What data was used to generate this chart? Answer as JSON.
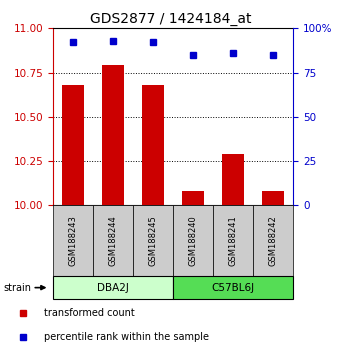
{
  "title": "GDS2877 / 1424184_at",
  "samples": [
    "GSM188243",
    "GSM188244",
    "GSM188245",
    "GSM188240",
    "GSM188241",
    "GSM188242"
  ],
  "bar_values": [
    10.68,
    10.79,
    10.68,
    10.08,
    10.29,
    10.08
  ],
  "percentile_values": [
    92,
    93,
    92,
    85,
    86,
    85
  ],
  "ylim_left": [
    10,
    11
  ],
  "ylim_right": [
    0,
    100
  ],
  "yticks_left": [
    10,
    10.25,
    10.5,
    10.75,
    11
  ],
  "yticks_right": [
    0,
    25,
    50,
    75,
    100
  ],
  "bar_color": "#cc0000",
  "dot_color": "#0000cc",
  "groups": [
    {
      "label": "DBA2J",
      "indices": [
        0,
        1,
        2
      ],
      "color": "#ccffcc"
    },
    {
      "label": "C57BL6J",
      "indices": [
        3,
        4,
        5
      ],
      "color": "#55dd55"
    }
  ],
  "strain_label": "strain",
  "legend_bar_label": "transformed count",
  "legend_dot_label": "percentile rank within the sample",
  "sample_bg_color": "#cccccc",
  "title_fontsize": 10,
  "tick_fontsize": 7.5,
  "label_fontsize": 7
}
